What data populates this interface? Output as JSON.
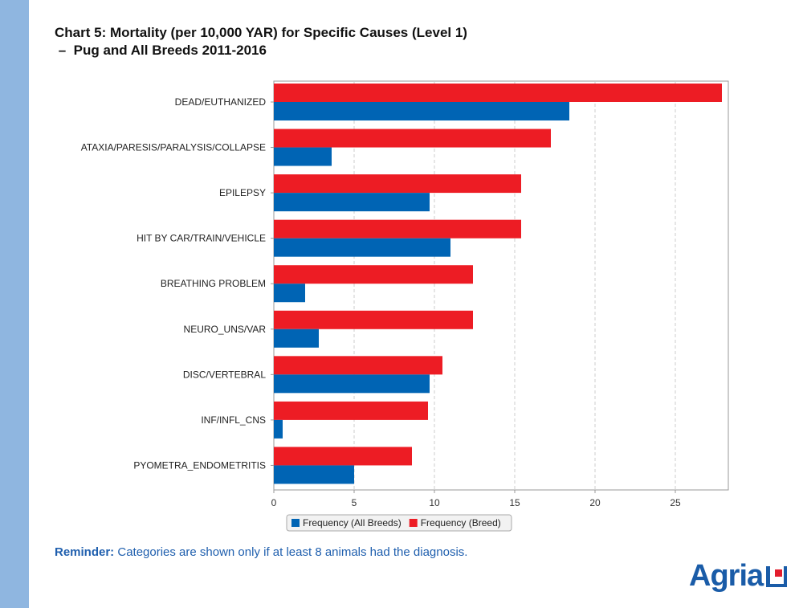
{
  "title_line1": "Chart 5: Mortality (per 10,000 YAR) for Specific Causes (Level 1)",
  "title_line2": " –  Pug and All Breeds 2011-2016",
  "reminder_label": "Reminder:",
  "reminder_text": " Categories are shown only if at least 8 animals had the diagnosis.",
  "logo_text": "Agria",
  "chart_data": {
    "type": "bar",
    "orientation": "horizontal",
    "categories": [
      "DEAD/EUTHANIZED",
      "ATAXIA/PARESIS/PARALYSIS/COLLAPSE",
      "EPILEPSY",
      "HIT BY CAR/TRAIN/VEHICLE",
      "BREATHING PROBLEM",
      "NEURO_UNS/VAR",
      "DISC/VERTEBRAL",
      "INF/INFL_CNS",
      "PYOMETRA_ENDOMETRITIS"
    ],
    "series": [
      {
        "name": "Frequency (Breed)",
        "color": "#ed1c24",
        "values": [
          27.9,
          17.25,
          15.4,
          15.4,
          12.4,
          12.4,
          10.5,
          9.6,
          8.6
        ]
      },
      {
        "name": "Frequency (All Breeds)",
        "color": "#0064b4",
        "values": [
          18.4,
          3.6,
          9.7,
          11.0,
          1.95,
          2.8,
          9.7,
          0.55,
          5.0
        ]
      }
    ],
    "xlim": [
      0,
      28.3
    ],
    "xticks": [
      0,
      5,
      10,
      15,
      20,
      25
    ],
    "grid": "vertical dashed",
    "legend": "bottom",
    "legend_order": [
      "Frequency (All Breeds)",
      "Frequency (Breed)"
    ]
  }
}
